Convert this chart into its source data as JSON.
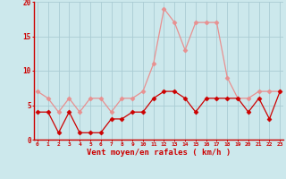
{
  "hours": [
    0,
    1,
    2,
    3,
    4,
    5,
    6,
    7,
    8,
    9,
    10,
    11,
    12,
    13,
    14,
    15,
    16,
    17,
    18,
    19,
    20,
    21,
    22,
    23
  ],
  "wind_mean": [
    4,
    4,
    1,
    4,
    1,
    1,
    1,
    3,
    3,
    4,
    4,
    6,
    7,
    7,
    6,
    4,
    6,
    6,
    6,
    6,
    4,
    6,
    3,
    7
  ],
  "wind_gust": [
    7,
    6,
    4,
    6,
    4,
    6,
    6,
    4,
    6,
    6,
    7,
    11,
    19,
    17,
    13,
    17,
    17,
    17,
    9,
    6,
    6,
    7,
    7,
    7
  ],
  "bg_color": "#cce8ec",
  "grid_color": "#aaccd4",
  "mean_color": "#cc0000",
  "gust_color": "#e89090",
  "axis_label_color": "#cc0000",
  "tick_color": "#cc0000",
  "xlabel": "Vent moyen/en rafales ( km/h )",
  "ylim": [
    0,
    20
  ],
  "yticks": [
    0,
    5,
    10,
    15,
    20
  ],
  "marker": "D",
  "markersize": 2.5,
  "linewidth": 0.9
}
